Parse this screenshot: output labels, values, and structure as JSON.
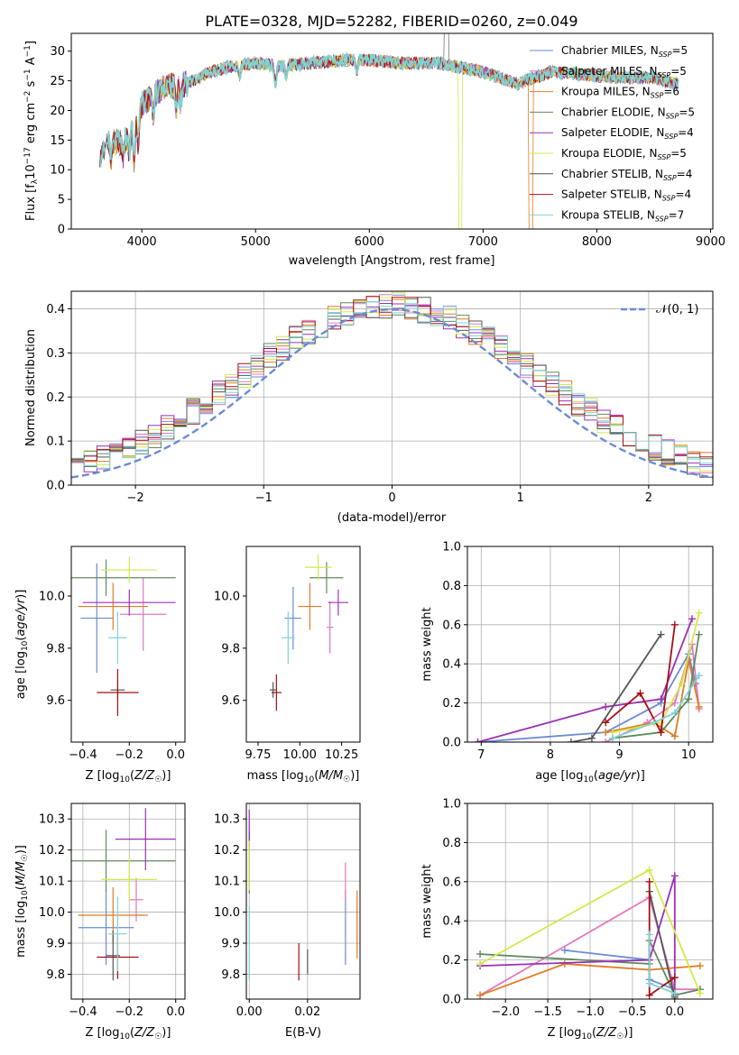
{
  "title": "PLATE=0328, MJD=52282, FIBERID=0260, z=0.049",
  "colors": {
    "Chabrier MILES": "#6b8bd6",
    "Salpeter MILES": "#e377c2",
    "Kroupa MILES": "#e07b22",
    "Chabrier ELODIE": "#5f8a5f",
    "Salpeter ELODIE": "#9b30b5",
    "Kroupa ELODIE": "#d4e84a",
    "Chabrier STELIB": "#555555",
    "Salpeter STELIB": "#a50f15",
    "Kroupa STELIB": "#7fd3d3"
  },
  "chart_data": [
    {
      "id": "spectrum",
      "type": "line",
      "title": "PLATE=0328, MJD=52282, FIBERID=0260, z=0.049",
      "xlabel": "wavelength [Angstrom, rest frame]",
      "ylabel": "Flux [f_λ10^-17 erg cm^-2 s^-1 A^-1]",
      "xlim": [
        3380,
        9020
      ],
      "ylim": [
        0,
        33
      ],
      "xticks": [
        "4000",
        "5000",
        "6000",
        "7000",
        "8000",
        "9000"
      ],
      "yticks": [
        "0",
        "5",
        "10",
        "15",
        "20",
        "25",
        "30"
      ],
      "legend_position": "right",
      "legend": [
        "Chabrier MILES, N_SSP=5",
        "Salpeter MILES, N_SSP=5",
        "Kroupa MILES, N_SSP=6",
        "Chabrier ELODIE, N_SSP=5",
        "Salpeter ELODIE, N_SSP=4",
        "Kroupa ELODIE, N_SSP=5",
        "Chabrier STELIB, N_SSP=4",
        "Salpeter STELIB, N_SSP=4",
        "Kroupa STELIB, N_SSP=7"
      ],
      "continuum": [
        [
          3630,
          11
        ],
        [
          3700,
          15
        ],
        [
          3800,
          14.5
        ],
        [
          3900,
          16
        ],
        [
          4000,
          21
        ],
        [
          4100,
          22.5
        ],
        [
          4200,
          24
        ],
        [
          4400,
          24.5
        ],
        [
          4600,
          26.5
        ],
        [
          4800,
          27.5
        ],
        [
          5000,
          28
        ],
        [
          5200,
          27.5
        ],
        [
          5500,
          28
        ],
        [
          5800,
          28.5
        ],
        [
          6000,
          28.5
        ],
        [
          6300,
          28
        ],
        [
          6600,
          28
        ],
        [
          7000,
          26.5
        ],
        [
          7300,
          24.5
        ],
        [
          7600,
          26.5
        ],
        [
          7900,
          26
        ],
        [
          8200,
          25.5
        ],
        [
          8500,
          25.5
        ],
        [
          8700,
          24.5
        ]
      ]
    },
    {
      "id": "residuals",
      "type": "histogram",
      "xlabel": "(data-model)/error",
      "ylabel": "Normed distribution",
      "xlim": [
        -2.5,
        2.5
      ],
      "ylim": [
        0,
        0.44
      ],
      "xticks": [
        "−2",
        "−1",
        "0",
        "1",
        "2"
      ],
      "yticks": [
        "0.0",
        "0.1",
        "0.2",
        "0.3",
        "0.4"
      ],
      "legend_position": "top-right",
      "reference_curve": "𝒩(0, 1)",
      "bin_width": 0.1
    },
    {
      "id": "age-vs-Z",
      "type": "scatter",
      "xlabel": "Z [log10(Z/Z☉)]",
      "ylabel": "age  [log10(age/yr)]",
      "xlim": [
        -0.45,
        0.04
      ],
      "ylim": [
        9.44,
        10.19
      ],
      "xticks": [
        "−0.4",
        "−0.2",
        "0.0"
      ],
      "yticks": [
        "9.6",
        "9.8",
        "10.0"
      ],
      "points": [
        {
          "model": "Chabrier MILES",
          "x": -0.34,
          "xerr": 0.07,
          "y": 9.915,
          "yerr": 0.21
        },
        {
          "model": "Salpeter MILES",
          "x": -0.14,
          "xerr": 0.1,
          "y": 9.93,
          "yerr": 0.14
        },
        {
          "model": "Kroupa MILES",
          "x": -0.27,
          "xerr": 0.15,
          "y": 9.96,
          "yerr": 0.09
        },
        {
          "model": "Chabrier ELODIE",
          "x": -0.3,
          "xerr": 0.3,
          "y": 10.07,
          "yerr": 0.07
        },
        {
          "model": "Salpeter ELODIE",
          "x": -0.2,
          "xerr": 0.2,
          "y": 9.975,
          "yerr": 0.05
        },
        {
          "model": "Kroupa ELODIE",
          "x": -0.2,
          "xerr": 0.12,
          "y": 10.1,
          "yerr": 0.05
        },
        {
          "model": "Chabrier STELIB",
          "x": -0.25,
          "xerr": 0.03,
          "y": 9.64,
          "yerr": 0.04
        },
        {
          "model": "Salpeter STELIB",
          "x": -0.25,
          "xerr": 0.09,
          "y": 9.63,
          "yerr": 0.09
        },
        {
          "model": "Kroupa STELIB",
          "x": -0.25,
          "xerr": 0.04,
          "y": 9.84,
          "yerr": 0.1
        }
      ]
    },
    {
      "id": "age-vs-mass",
      "type": "scatter",
      "xlabel": "mass [log10(M/M☉)]",
      "ylabel": "",
      "xlim": [
        9.68,
        10.36
      ],
      "ylim": [
        9.44,
        10.19
      ],
      "xticks": [
        "9.75",
        "10.00",
        "10.25"
      ],
      "yticks": [
        "9.6",
        "9.8",
        "10.0"
      ],
      "points": [
        {
          "model": "Chabrier MILES",
          "x": 9.96,
          "xerr": 0.05,
          "y": 9.915,
          "yerr": 0.12
        },
        {
          "model": "Salpeter MILES",
          "x": 10.18,
          "xerr": 0.02,
          "y": 9.88,
          "yerr": 0.1
        },
        {
          "model": "Kroupa MILES",
          "x": 10.06,
          "xerr": 0.07,
          "y": 9.96,
          "yerr": 0.09
        },
        {
          "model": "Chabrier ELODIE",
          "x": 10.16,
          "xerr": 0.1,
          "y": 10.07,
          "yerr": 0.06
        },
        {
          "model": "Salpeter ELODIE",
          "x": 10.23,
          "xerr": 0.06,
          "y": 9.975,
          "yerr": 0.05
        },
        {
          "model": "Kroupa ELODIE",
          "x": 10.11,
          "xerr": 0.08,
          "y": 10.11,
          "yerr": 0.05
        },
        {
          "model": "Chabrier STELIB",
          "x": 9.84,
          "xerr": 0.02,
          "y": 9.64,
          "yerr": 0.03
        },
        {
          "model": "Salpeter STELIB",
          "x": 9.86,
          "xerr": 0.03,
          "y": 9.63,
          "yerr": 0.07
        },
        {
          "model": "Kroupa STELIB",
          "x": 9.93,
          "xerr": 0.04,
          "y": 9.84,
          "yerr": 0.1
        }
      ]
    },
    {
      "id": "weight-vs-age",
      "type": "line",
      "xlabel": "age  [log10(age/yr)]",
      "ylabel": "mass weight",
      "xlim": [
        6.8,
        10.35
      ],
      "ylim": [
        0,
        1
      ],
      "xticks": [
        "7",
        "8",
        "9",
        "10"
      ],
      "yticks": [
        "0.0",
        "0.2",
        "0.4",
        "0.6",
        "0.8",
        "1.0"
      ],
      "series": [
        {
          "model": "Chabrier MILES",
          "points": [
            [
              6.95,
              0.0
            ],
            [
              8.8,
              0.05
            ],
            [
              9.6,
              0.2
            ],
            [
              10.0,
              0.45
            ],
            [
              10.1,
              0.3
            ]
          ]
        },
        {
          "model": "Salpeter MILES",
          "points": [
            [
              8.8,
              0.0
            ],
            [
              9.4,
              0.1
            ],
            [
              9.8,
              0.2
            ],
            [
              10.05,
              0.5
            ],
            [
              10.15,
              0.17
            ]
          ]
        },
        {
          "model": "Kroupa MILES",
          "points": [
            [
              8.8,
              0.05
            ],
            [
              9.5,
              0.1
            ],
            [
              9.8,
              0.03
            ],
            [
              10.0,
              0.42
            ],
            [
              10.15,
              0.18
            ]
          ]
        },
        {
          "model": "Chabrier ELODIE",
          "points": [
            [
              8.9,
              0.02
            ],
            [
              9.6,
              0.05
            ],
            [
              10.0,
              0.22
            ],
            [
              10.15,
              0.55
            ]
          ]
        },
        {
          "model": "Salpeter ELODIE",
          "points": [
            [
              6.95,
              0.0
            ],
            [
              8.8,
              0.18
            ],
            [
              9.6,
              0.22
            ],
            [
              10.05,
              0.63
            ]
          ]
        },
        {
          "model": "Kroupa ELODIE",
          "points": [
            [
              8.9,
              0.05
            ],
            [
              9.6,
              0.1
            ],
            [
              9.9,
              0.3
            ],
            [
              10.15,
              0.66
            ]
          ]
        },
        {
          "model": "Chabrier STELIB",
          "points": [
            [
              8.3,
              0.0
            ],
            [
              8.6,
              0.02
            ],
            [
              9.6,
              0.55
            ]
          ]
        },
        {
          "model": "Salpeter STELIB",
          "points": [
            [
              8.8,
              0.1
            ],
            [
              9.3,
              0.25
            ],
            [
              9.6,
              0.05
            ],
            [
              9.8,
              0.6
            ]
          ]
        },
        {
          "model": "Kroupa STELIB",
          "points": [
            [
              8.9,
              0.02
            ],
            [
              9.5,
              0.1
            ],
            [
              9.8,
              0.15
            ],
            [
              10.15,
              0.34
            ]
          ]
        }
      ]
    },
    {
      "id": "mass-vs-Z",
      "type": "scatter",
      "xlabel": "Z [log10(Z/Z☉)]",
      "ylabel": "mass [log10(M/M☉)]",
      "xlim": [
        -0.45,
        0.04
      ],
      "ylim": [
        9.72,
        10.35
      ],
      "xticks": [
        "−0.4",
        "−0.2",
        "0.0"
      ],
      "yticks": [
        "9.8",
        "9.9",
        "10.0",
        "10.1",
        "10.2",
        "10.3"
      ],
      "points": [
        {
          "model": "Chabrier MILES",
          "x": -0.3,
          "xerr": 0.12,
          "y": 9.95,
          "yerr": 0.12
        },
        {
          "model": "Salpeter MILES",
          "x": -0.17,
          "xerr": 0.03,
          "y": 10.04,
          "yerr": 0.07
        },
        {
          "model": "Kroupa MILES",
          "x": -0.27,
          "xerr": 0.15,
          "y": 9.99,
          "yerr": 0.09
        },
        {
          "model": "Chabrier ELODIE",
          "x": -0.3,
          "xerr": 0.3,
          "y": 10.165,
          "yerr": 0.1
        },
        {
          "model": "Salpeter ELODIE",
          "x": -0.13,
          "xerr": 0.13,
          "y": 10.235,
          "yerr": 0.1
        },
        {
          "model": "Kroupa ELODIE",
          "x": -0.2,
          "xerr": 0.12,
          "y": 10.105,
          "yerr": 0.07
        },
        {
          "model": "Chabrier STELIB",
          "x": -0.27,
          "xerr": 0.03,
          "y": 9.86,
          "yerr": 0.08
        },
        {
          "model": "Salpeter STELIB",
          "x": -0.25,
          "xerr": 0.09,
          "y": 9.855,
          "yerr": 0.07
        },
        {
          "model": "Kroupa STELIB",
          "x": -0.25,
          "xerr": 0.04,
          "y": 9.93,
          "yerr": 0.12
        }
      ]
    },
    {
      "id": "mass-vs-ebv",
      "type": "scatter",
      "xlabel": "E(B-V)",
      "ylabel": "",
      "xlim": [
        -0.001,
        0.038
      ],
      "ylim": [
        9.72,
        10.35
      ],
      "xticks": [
        "0.00",
        "0.02"
      ],
      "yticks": [
        "9.8",
        "9.9",
        "10.0",
        "10.1",
        "10.2",
        "10.3"
      ],
      "points": [
        {
          "model": "Chabrier MILES",
          "x": 0.033,
          "xerr": 0,
          "y": 9.95,
          "yerr": 0.12
        },
        {
          "model": "Salpeter MILES",
          "x": 0.033,
          "xerr": 0,
          "y": 10.1,
          "yerr": 0.06
        },
        {
          "model": "Kroupa MILES",
          "x": 0.037,
          "xerr": 0,
          "y": 9.96,
          "yerr": 0.11
        },
        {
          "model": "Chabrier ELODIE",
          "x": 0.0,
          "xerr": 0,
          "y": 10.16,
          "yerr": 0.1
        },
        {
          "model": "Salpeter ELODIE",
          "x": 0.0,
          "xerr": 0,
          "y": 10.27,
          "yerr": 0.06
        },
        {
          "model": "Kroupa ELODIE",
          "x": 0.0,
          "xerr": 0,
          "y": 10.15,
          "yerr": 0.08
        },
        {
          "model": "Chabrier STELIB",
          "x": 0.02,
          "xerr": 0,
          "y": 9.84,
          "yerr": 0.04
        },
        {
          "model": "Salpeter STELIB",
          "x": 0.017,
          "xerr": 0,
          "y": 9.84,
          "yerr": 0.06
        },
        {
          "model": "Kroupa STELIB",
          "x": 0.0,
          "xerr": 0,
          "y": 9.9,
          "yerr": 0.12
        }
      ]
    },
    {
      "id": "weight-vs-Z",
      "type": "line",
      "xlabel": "Z [log10(Z/Z☉)]",
      "ylabel": "mass weight",
      "xlim": [
        -2.45,
        0.45
      ],
      "ylim": [
        0,
        1
      ],
      "xticks": [
        "−2.0",
        "−1.5",
        "−1.0",
        "−0.5",
        "0.0"
      ],
      "yticks": [
        "0.0",
        "0.2",
        "0.4",
        "0.6",
        "0.8",
        "1.0"
      ],
      "series": [
        {
          "model": "Chabrier MILES",
          "points": [
            [
              -1.3,
              0.25
            ],
            [
              -0.3,
              0.2
            ],
            [
              -0.3,
              0.1
            ],
            [
              0.0,
              0.05
            ]
          ]
        },
        {
          "model": "Salpeter MILES",
          "points": [
            [
              -2.3,
              0.02
            ],
            [
              -0.3,
              0.52
            ],
            [
              0.0,
              0.05
            ],
            [
              0.3,
              0.05
            ]
          ]
        },
        {
          "model": "Kroupa MILES",
          "points": [
            [
              -2.3,
              0.02
            ],
            [
              -1.3,
              0.18
            ],
            [
              -0.3,
              0.15
            ],
            [
              0.3,
              0.17
            ]
          ]
        },
        {
          "model": "Chabrier ELODIE",
          "points": [
            [
              -2.3,
              0.23
            ],
            [
              -0.3,
              0.18
            ],
            [
              -0.3,
              0.3
            ],
            [
              0.0,
              0.02
            ],
            [
              0.3,
              0.05
            ]
          ]
        },
        {
          "model": "Salpeter ELODIE",
          "points": [
            [
              -2.3,
              0.17
            ],
            [
              -0.3,
              0.2
            ],
            [
              0.0,
              0.63
            ],
            [
              0.0,
              0.0
            ]
          ]
        },
        {
          "model": "Kroupa ELODIE",
          "points": [
            [
              -2.3,
              0.18
            ],
            [
              -0.3,
              0.66
            ],
            [
              0.3,
              0.03
            ]
          ]
        },
        {
          "model": "Chabrier STELIB",
          "points": [
            [
              -0.3,
              0.55
            ],
            [
              0.0,
              0.01
            ]
          ]
        },
        {
          "model": "Salpeter STELIB",
          "points": [
            [
              -0.3,
              0.6
            ],
            [
              -0.3,
              0.02
            ],
            [
              0.0,
              0.11
            ]
          ]
        },
        {
          "model": "Kroupa STELIB",
          "points": [
            [
              -0.3,
              0.33
            ],
            [
              -0.3,
              0.08
            ],
            [
              0.0,
              0.03
            ]
          ]
        }
      ]
    }
  ]
}
